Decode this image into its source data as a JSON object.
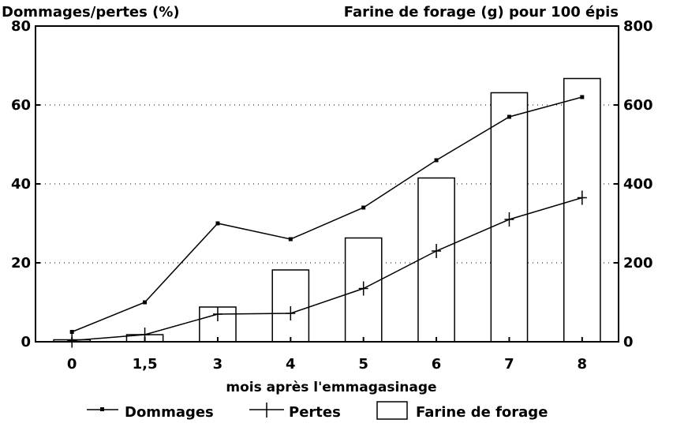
{
  "chart_data": {
    "type": "bar+line",
    "ylabel_left": "Dommages/pertes (%)",
    "ylabel_right": "Farine de forage (g) pour 100 épis",
    "xlabel": "mois après l'emmagasinage",
    "categories": [
      "0",
      "1,5",
      "3",
      "4",
      "5",
      "6",
      "7",
      "8"
    ],
    "ylim_left": [
      0,
      80
    ],
    "ylim_right": [
      0,
      800
    ],
    "yticks_left": [
      "0",
      "20",
      "40",
      "60",
      "80"
    ],
    "yticks_right": [
      "0",
      "200",
      "400",
      "600",
      "800"
    ],
    "grid": "dotted horizontal",
    "legend_position": "bottom",
    "series": [
      {
        "name": "Dommages",
        "kind": "line",
        "marker": "square",
        "axis": "left",
        "values": [
          2.5,
          10,
          30,
          26,
          34,
          46,
          57,
          62
        ]
      },
      {
        "name": "Pertes",
        "kind": "line",
        "marker": "plus",
        "axis": "left",
        "values": [
          0.3,
          1.8,
          7,
          7.2,
          13.5,
          23,
          31,
          36.5
        ]
      },
      {
        "name": "Farine de forage",
        "kind": "bar",
        "axis": "right",
        "values": [
          5,
          18,
          88,
          182,
          263,
          415,
          631,
          667
        ]
      }
    ]
  }
}
